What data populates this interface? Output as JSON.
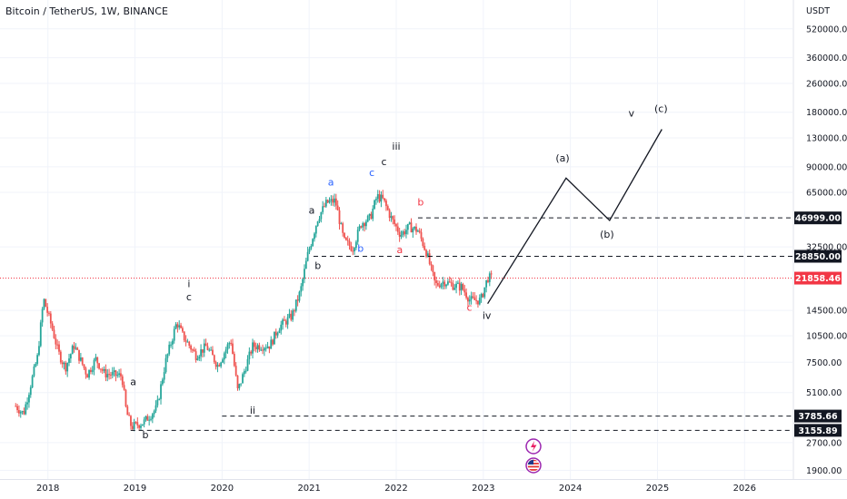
{
  "header": {
    "title": "Bitcoin / TetherUS, 1W, BINANCE"
  },
  "axis": {
    "currency": "USDT"
  },
  "chart_data": {
    "type": "candlestick",
    "scale": "log",
    "ylim": [
      1700,
      750000
    ],
    "x_range": [
      2017.45,
      2026.55
    ],
    "x_ticks": [
      "2018",
      "2019",
      "2020",
      "2021",
      "2022",
      "2023",
      "2024",
      "2025",
      "2026"
    ],
    "y_ticks": [
      {
        "value": 520000,
        "label": "520000.00"
      },
      {
        "value": 360000,
        "label": "360000.00"
      },
      {
        "value": 260000,
        "label": "260000.00"
      },
      {
        "value": 180000,
        "label": "180000.00"
      },
      {
        "value": 130000,
        "label": "130000.00"
      },
      {
        "value": 90000,
        "label": "90000.00"
      },
      {
        "value": 65000,
        "label": "65000.00"
      },
      {
        "value": 32500,
        "label": "32500.00"
      },
      {
        "value": 14500,
        "label": "14500.00"
      },
      {
        "value": 10500,
        "label": "10500.00"
      },
      {
        "value": 7500,
        "label": "7500.00"
      },
      {
        "value": 5100,
        "label": "5100.00"
      },
      {
        "value": 2700,
        "label": "2700.00"
      },
      {
        "value": 1900,
        "label": "1900.00"
      }
    ],
    "price_anchors": [
      [
        2017.63,
        4300
      ],
      [
        2017.72,
        3900
      ],
      [
        2017.8,
        5600
      ],
      [
        2017.88,
        8000
      ],
      [
        2017.95,
        16800
      ],
      [
        2018.05,
        11500
      ],
      [
        2018.12,
        8500
      ],
      [
        2018.2,
        7000
      ],
      [
        2018.3,
        9300
      ],
      [
        2018.45,
        6400
      ],
      [
        2018.55,
        7800
      ],
      [
        2018.65,
        6500
      ],
      [
        2018.85,
        6300
      ],
      [
        2018.9,
        4000
      ],
      [
        2018.96,
        3300
      ],
      [
        2019.1,
        3500
      ],
      [
        2019.25,
        4200
      ],
      [
        2019.35,
        7500
      ],
      [
        2019.48,
        12500
      ],
      [
        2019.55,
        10500
      ],
      [
        2019.7,
        8200
      ],
      [
        2019.82,
        9200
      ],
      [
        2019.95,
        7200
      ],
      [
        2020.1,
        10000
      ],
      [
        2020.18,
        5200
      ],
      [
        2020.35,
        9200
      ],
      [
        2020.55,
        9300
      ],
      [
        2020.65,
        11700
      ],
      [
        2020.8,
        13500
      ],
      [
        2020.9,
        18500
      ],
      [
        2020.98,
        29000
      ],
      [
        2021.1,
        47000
      ],
      [
        2021.2,
        57000
      ],
      [
        2021.3,
        58500
      ],
      [
        2021.4,
        35000
      ],
      [
        2021.5,
        32000
      ],
      [
        2021.6,
        44000
      ],
      [
        2021.7,
        47000
      ],
      [
        2021.78,
        62000
      ],
      [
        2021.85,
        59000
      ],
      [
        2021.95,
        46000
      ],
      [
        2022.05,
        38000
      ],
      [
        2022.15,
        42000
      ],
      [
        2022.25,
        40000
      ],
      [
        2022.35,
        30000
      ],
      [
        2022.45,
        20000
      ],
      [
        2022.55,
        21000
      ],
      [
        2022.65,
        20000
      ],
      [
        2022.75,
        19500
      ],
      [
        2022.85,
        16500
      ],
      [
        2022.97,
        16500
      ],
      [
        2023.05,
        22000
      ],
      [
        2023.1,
        21858
      ]
    ],
    "current_price": {
      "value": 21858.46,
      "label": "21858.46"
    },
    "levels": [
      {
        "value": 46999.0,
        "label": "46999.00",
        "from": 2022.25
      },
      {
        "value": 28850.0,
        "label": "28850.00",
        "from": 2021.05
      },
      {
        "value": 3785.66,
        "label": "3785.66",
        "from": 2020.0
      },
      {
        "value": 3155.89,
        "label": "3155.89",
        "from": 2018.95
      }
    ],
    "projection": [
      [
        2023.05,
        15800
      ],
      [
        2023.95,
        78000
      ],
      [
        2024.45,
        45500
      ],
      [
        2025.05,
        145000
      ]
    ],
    "wave_labels": [
      {
        "text": "a",
        "x": 2018.98,
        "y": 5600,
        "color": "#131722"
      },
      {
        "text": "b",
        "x": 2019.12,
        "y": 2850,
        "color": "#131722"
      },
      {
        "text": "i",
        "x": 2019.62,
        "y": 19500,
        "color": "#131722"
      },
      {
        "text": "c",
        "x": 2019.62,
        "y": 16500,
        "color": "#131722"
      },
      {
        "text": "ii",
        "x": 2020.35,
        "y": 3900,
        "color": "#131722"
      },
      {
        "text": "a",
        "x": 2021.03,
        "y": 49500,
        "color": "#131722"
      },
      {
        "text": "b",
        "x": 2021.1,
        "y": 24500,
        "color": "#131722"
      },
      {
        "text": "a",
        "x": 2021.25,
        "y": 71000,
        "color": "#2962ff"
      },
      {
        "text": "b",
        "x": 2021.59,
        "y": 30500,
        "color": "#2962ff"
      },
      {
        "text": "c",
        "x": 2021.72,
        "y": 80000,
        "color": "#2962ff"
      },
      {
        "text": "c",
        "x": 2021.86,
        "y": 92000,
        "color": "#131722"
      },
      {
        "text": "iii",
        "x": 2022.0,
        "y": 112000,
        "color": "#131722"
      },
      {
        "text": "b",
        "x": 2022.28,
        "y": 55000,
        "color": "#f23645"
      },
      {
        "text": "a",
        "x": 2022.04,
        "y": 30000,
        "color": "#f23645"
      },
      {
        "text": "c",
        "x": 2022.84,
        "y": 14400,
        "color": "#f23645"
      },
      {
        "text": "iv",
        "x": 2023.04,
        "y": 13000,
        "color": "#131722"
      },
      {
        "text": "(a)",
        "x": 2023.91,
        "y": 96000,
        "color": "#131722"
      },
      {
        "text": "(b)",
        "x": 2024.42,
        "y": 36500,
        "color": "#131722"
      },
      {
        "text": "v",
        "x": 2024.7,
        "y": 170000,
        "color": "#131722"
      },
      {
        "text": "(c)",
        "x": 2025.04,
        "y": 180000,
        "color": "#131722"
      }
    ]
  },
  "colors": {
    "up": "#26a69a",
    "down": "#ef5350",
    "current": "#f23645",
    "line": "#131722"
  },
  "icons": [
    "lightning-icon",
    "us-flag-icon"
  ]
}
